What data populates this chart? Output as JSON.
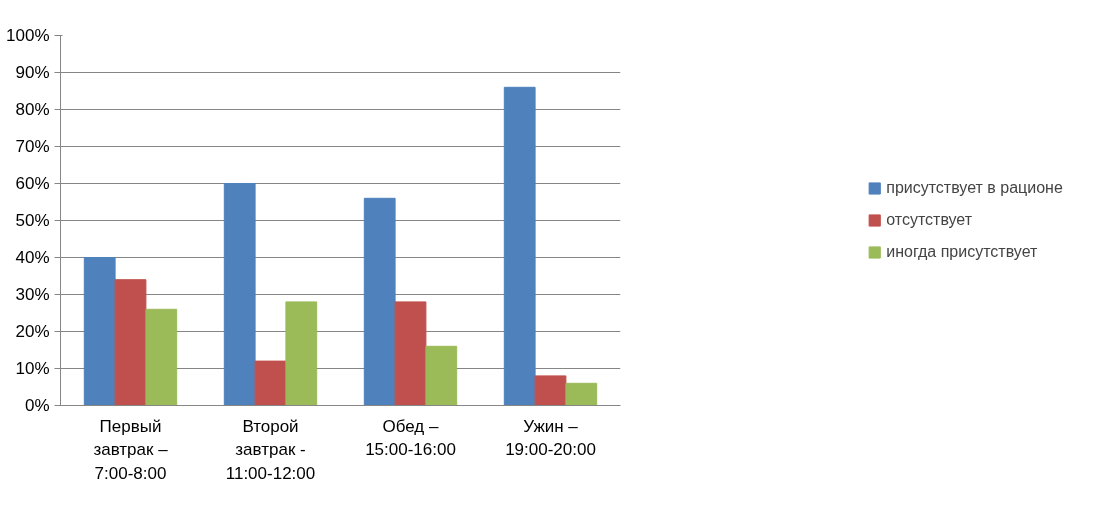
{
  "chart_data": {
    "type": "bar",
    "categories": [
      "Первый завтрак – 7:00-8:00",
      "Второй завтрак - 11:00-12:00",
      "Обед – 15:00-16:00",
      "Ужин – 19:00-20:00"
    ],
    "series": [
      {
        "name": "присутствует в рационе",
        "color": "#4f81bd",
        "values": [
          40,
          60,
          56,
          86
        ]
      },
      {
        "name": "отсутствует",
        "color": "#c0504d",
        "values": [
          34,
          12,
          28,
          8
        ]
      },
      {
        "name": "иногда присутствует",
        "color": "#9bbb59",
        "values": [
          26,
          28,
          16,
          6
        ]
      }
    ],
    "ylim": [
      0,
      100
    ],
    "yticks": [
      {
        "value": 0,
        "label": "0%"
      },
      {
        "value": 10,
        "label": "10%"
      },
      {
        "value": 20,
        "label": "20%"
      },
      {
        "value": 30,
        "label": "30%"
      },
      {
        "value": 40,
        "label": "40%"
      },
      {
        "value": 50,
        "label": "50%"
      },
      {
        "value": 60,
        "label": "60%"
      },
      {
        "value": 70,
        "label": "70%"
      },
      {
        "value": 80,
        "label": "80%"
      },
      {
        "value": 90,
        "label": "90%"
      },
      {
        "value": 100,
        "label": "100%"
      }
    ],
    "grid": "y",
    "legend": "right"
  }
}
